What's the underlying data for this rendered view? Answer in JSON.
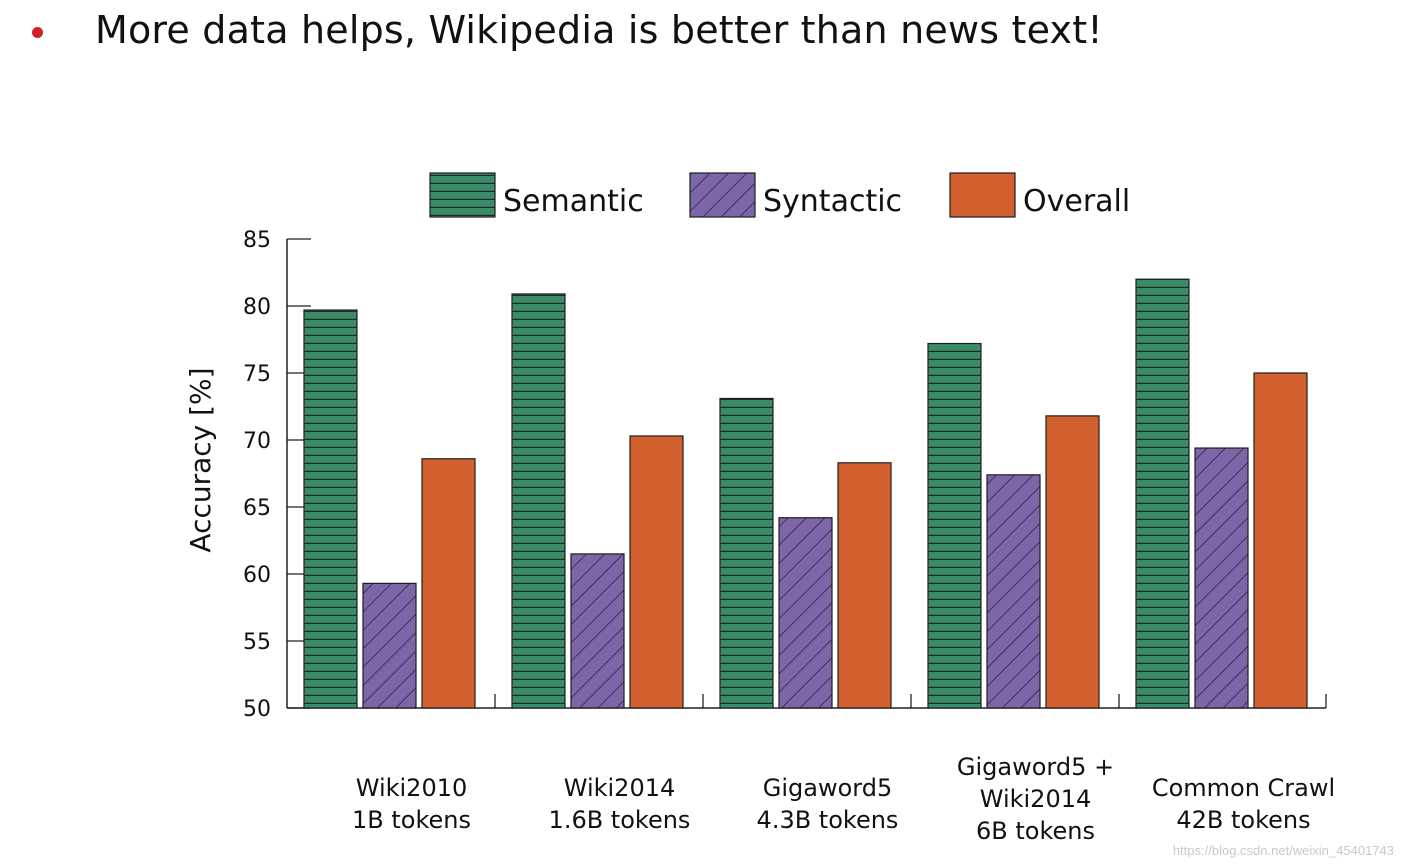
{
  "slide": {
    "bullet_text": "More data helps, Wikipedia is better than news text!",
    "bullet_color": "#d0202a"
  },
  "chart_data": {
    "type": "bar",
    "ylabel": "Accuracy [%]",
    "xlabel": "",
    "ylim": [
      50,
      85
    ],
    "yticks": [
      50,
      55,
      60,
      65,
      70,
      75,
      80,
      85
    ],
    "grid": false,
    "legend_position": "top",
    "categories": [
      [
        "Wiki2010",
        "1B tokens"
      ],
      [
        "Wiki2014",
        "1.6B tokens"
      ],
      [
        "Gigaword5",
        "4.3B tokens"
      ],
      [
        "Gigaword5 +",
        "Wiki2014",
        "6B tokens"
      ],
      [
        "Common Crawl",
        "42B tokens"
      ]
    ],
    "series": [
      {
        "name": "Semantic",
        "color": "#3a8c69",
        "pattern": "horizontal-lines",
        "values": [
          79.7,
          80.9,
          73.1,
          77.2,
          82.0
        ]
      },
      {
        "name": "Syntactic",
        "color": "#7d66a8",
        "pattern": "diagonal-lines",
        "values": [
          59.3,
          61.5,
          64.2,
          67.4,
          69.4
        ]
      },
      {
        "name": "Overall",
        "color": "#d25f2e",
        "pattern": "solid",
        "values": [
          68.6,
          70.3,
          68.3,
          71.8,
          75.0
        ]
      }
    ]
  },
  "watermark": "https://blog.csdn.net/weixin_45401743"
}
